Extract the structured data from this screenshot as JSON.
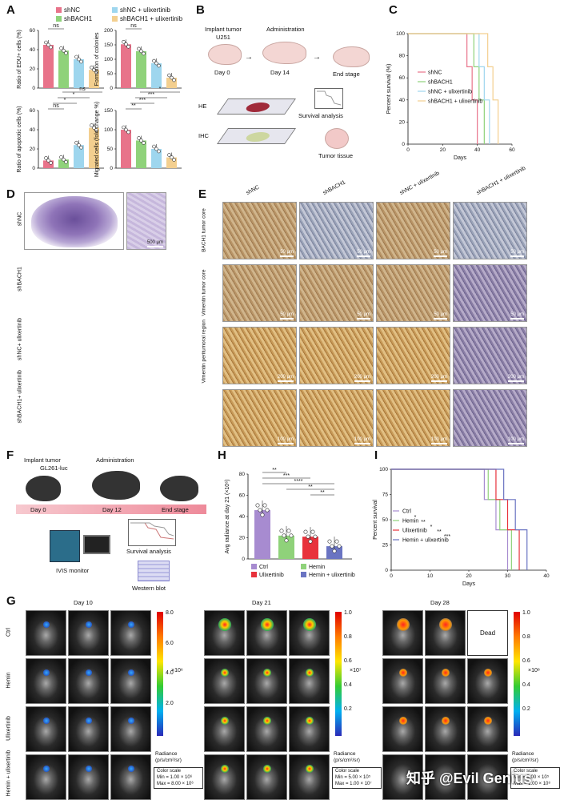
{
  "panels": {
    "A": "A",
    "B": "B",
    "C": "C",
    "D": "D",
    "E": "E",
    "F": "F",
    "G": "G",
    "H": "H",
    "I": "I"
  },
  "legendA": [
    "shNC",
    "shNC + ulixertinib",
    "shBACH1",
    "shBACH1 + ulixertinib"
  ],
  "colors": {
    "shNC": "#e8738a",
    "shBACH1": "#8fd27a",
    "ulix": "#9ed6ee",
    "comb": "#f3cf8f",
    "ctrl": "#a78bd0",
    "hemin": "#8fd27a",
    "ulixH": "#e8323c",
    "combH": "#6a74c2"
  },
  "chart_data": [
    {
      "type": "bar",
      "ylabel": "Ratio of EDU+ cells (%)",
      "ylim": [
        0,
        60
      ],
      "yticks": [
        "0",
        "20",
        "40",
        "60"
      ],
      "values": [
        45,
        39,
        30,
        19
      ],
      "sig": [
        "ns",
        "*",
        "**",
        "**"
      ]
    },
    {
      "type": "bar",
      "ylabel": "Formation of colonies",
      "ylim": [
        0,
        200
      ],
      "yticks": [
        "0",
        "50",
        "100",
        "150",
        "200"
      ],
      "values": [
        152,
        128,
        86,
        36
      ],
      "sig": [
        "ns",
        "**",
        "***",
        "**"
      ]
    },
    {
      "type": "bar",
      "ylabel": "Ratio of apoptotic cells (%)",
      "ylim": [
        0,
        60
      ],
      "yticks": [
        "0",
        "20",
        "40",
        "60"
      ],
      "values": [
        8,
        9,
        24,
        42
      ],
      "sig": [
        "ns",
        "*",
        "*",
        "ns"
      ]
    },
    {
      "type": "bar",
      "ylabel": "Migrated cells (fold change %)",
      "ylim": [
        0,
        150
      ],
      "yticks": [
        "0",
        "50",
        "100",
        "150"
      ],
      "values": [
        100,
        72,
        50,
        28
      ],
      "sig": [
        "**",
        "***",
        "***",
        "*"
      ]
    },
    {
      "type": "line",
      "ylabel": "Percent survival (%)",
      "xlabel": "Days",
      "ylim": [
        0,
        100
      ],
      "xticks": [
        "0",
        "20",
        "40",
        "60"
      ],
      "yticks": [
        "0",
        "20",
        "40",
        "60",
        "80",
        "100"
      ],
      "series": [
        {
          "name": "shNC"
        },
        {
          "name": "shBACH1"
        },
        {
          "name": "shNC + ulixertinib"
        },
        {
          "name": "shBACH1 + ulixertinib"
        }
      ]
    },
    {
      "type": "bar",
      "ylabel": "Avg radiance at day 21 (×10⁶)",
      "ylim": [
        0,
        80
      ],
      "yticks": [
        "0",
        "20",
        "40",
        "60",
        "80"
      ],
      "values": [
        46,
        22,
        21,
        12
      ],
      "categories": [
        "Ctrl",
        "Hemin",
        "Ulixertinib",
        "Hemin + ulixertinib"
      ],
      "sig": [
        "**",
        "***",
        "****",
        "**",
        "**"
      ]
    },
    {
      "type": "line",
      "ylabel": "Percent survival",
      "xlabel": "Days",
      "ylim": [
        0,
        100
      ],
      "xticks": [
        "0",
        "10",
        "20",
        "30",
        "40"
      ],
      "yticks": [
        "0",
        "25",
        "50",
        "75",
        "100"
      ],
      "series": [
        {
          "name": "Ctrl"
        },
        {
          "name": "Hemin"
        },
        {
          "name": "Ulixertinib"
        },
        {
          "name": "Hemin + ulixertinib"
        }
      ],
      "sig": [
        "*",
        "**",
        "*",
        "**",
        "***"
      ]
    }
  ],
  "B": {
    "implant": "Implant tumor",
    "cell": "U251",
    "admin": "Administration",
    "day0": "Day 0",
    "day14": "Day 14",
    "end": "End stage",
    "survival": "Survival analysis",
    "he": "HE",
    "ihc": "IHC",
    "tissue": "Tumor tissue"
  },
  "D": {
    "rows": [
      "shNC",
      "shBACH1",
      "shNC+ ulixertinib",
      "shBACH1+ ulixertinib"
    ],
    "scale": "500 μm"
  },
  "E": {
    "cols": [
      "shNC",
      "shBACH1",
      "shNC + ulixertinib",
      "shBACH1 + ulixertinib"
    ],
    "rows": [
      "BACH1 tumor core",
      "Vimentin tumor core",
      "Vimentin peritumoral region",
      ""
    ],
    "s50": "50 μm",
    "s200": "200 μm",
    "s100": "100 μm"
  },
  "F": {
    "implant": "Implant tumor",
    "cell": "GL261-luc",
    "admin": "Administration",
    "day0": "Day 0",
    "day12": "Day 12",
    "end": "End stage",
    "ivis": "IVIS monitor",
    "survival": "Survival analysis",
    "wb": "Western blot"
  },
  "G": {
    "days": [
      "Day 10",
      "Day 21",
      "Day 28"
    ],
    "rows": [
      "Ctrl",
      "Hemin",
      "Ulixertinib",
      "Hemin + ulixertinib"
    ],
    "dead": "Dead",
    "radiance": "Radiance (p/s/cm²/sr)",
    "colorscale": "Color scale",
    "scales": [
      {
        "ticks": [
          "8.0",
          "6.0",
          "4.0",
          "2.0"
        ],
        "mult": "×10⁶",
        "min": "Min = 1.00 × 10⁶",
        "max": "Max = 8.00 × 10⁶"
      },
      {
        "ticks": [
          "1.0",
          "0.8",
          "0.6",
          "0.4",
          "0.2"
        ],
        "mult": "×10⁷",
        "min": "Min = 5.00 × 10⁵",
        "max": "Max = 1.00 × 10⁷"
      },
      {
        "ticks": [
          "1.0",
          "0.8",
          "0.6",
          "0.4",
          "0.2"
        ],
        "mult": "×10⁸",
        "min": "Min = 5.00 × 10⁵",
        "max": "Max = 1.00 × 10⁸"
      }
    ]
  },
  "watermark": "知乎 @Evil Genius"
}
